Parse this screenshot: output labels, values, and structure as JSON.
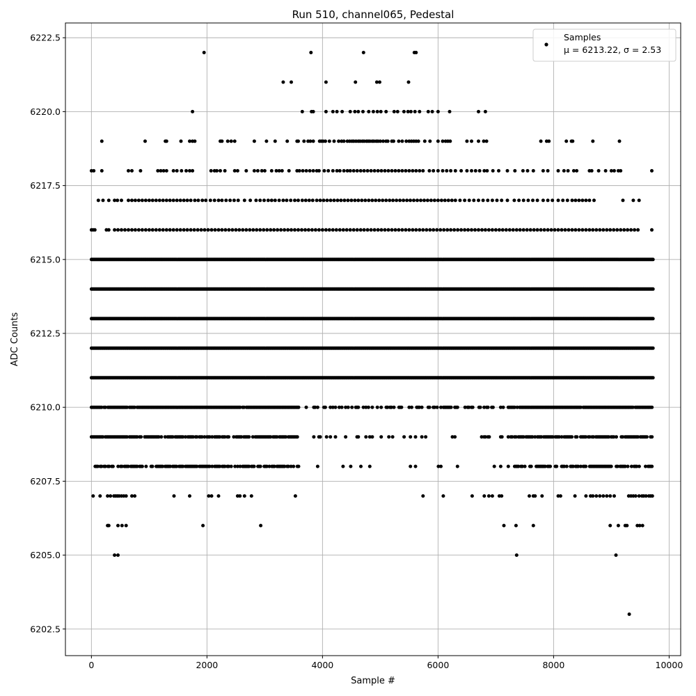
{
  "chart_data": {
    "type": "scatter",
    "title": "Run 510, channel065, Pedestal",
    "xlabel": "Sample #",
    "ylabel": "ADC Counts",
    "xlim": [
      -450,
      10200
    ],
    "ylim": [
      6201.6,
      6223.0
    ],
    "x_ticks": [
      0,
      2000,
      4000,
      6000,
      8000,
      10000
    ],
    "x_tick_labels": [
      "0",
      "2000",
      "4000",
      "6000",
      "8000",
      "10000"
    ],
    "y_ticks": [
      6202.5,
      6205.0,
      6207.5,
      6210.0,
      6212.5,
      6215.0,
      6217.5,
      6220.0,
      6222.5
    ],
    "y_tick_labels": [
      "6202.5",
      "6205.0",
      "6207.5",
      "6210.0",
      "6212.5",
      "6215.0",
      "6217.5",
      "6220.0",
      "6222.5"
    ],
    "grid": true,
    "legend_position": "top-right",
    "marker_color": "#000000",
    "series": [
      {
        "name": "Samples",
        "legend_stats": "μ = 6213.22, σ = 2.53",
        "x_range": [
          0,
          9720
        ],
        "level_points": [
          {
            "y": 6222,
            "x": [
              1950,
              3800,
              4710,
              5590,
              5620
            ]
          },
          {
            "y": 6221,
            "x": [
              3320,
              3460,
              4060,
              4570,
              4940,
              4990,
              5490
            ]
          },
          {
            "y": 6220,
            "x": [
              1750,
              3650,
              3810,
              3840,
              4060,
              4180,
              4250,
              4340,
              4480,
              4560,
              4620,
              4700,
              4800,
              4880,
              4950,
              5010,
              5100,
              5240,
              5300,
              5410,
              5480,
              5530,
              5600,
              5680,
              5830,
              5900,
              6000,
              6200,
              6700,
              6820
            ]
          },
          {
            "y": 6219,
            "x": [
              180,
              930,
              1280,
              1300,
              1550,
              1700,
              1750,
              1790,
              2230,
              2260,
              2360,
              2420,
              2480,
              2820,
              3030,
              3180,
              3390,
              3560,
              3580,
              3680,
              3750,
              3790,
              3840,
              3950,
              3980,
              4010,
              4050,
              4120,
              4200,
              4280,
              4330,
              4370,
              4430,
              4470,
              4510,
              4540,
              4580,
              4620,
              4650,
              4690,
              4720,
              4760,
              4790,
              4820,
              4860,
              4890,
              4930,
              4960,
              5000,
              5050,
              5100,
              5130,
              5200,
              5230,
              5320,
              5380,
              5450,
              5500,
              5540,
              5580,
              5620,
              5660,
              5770,
              5860,
              6000,
              6080,
              6130,
              6170,
              6210,
              6500,
              6580,
              6700,
              6790,
              6840,
              7780,
              7880,
              7920,
              8220,
              8310,
              8330,
              8680,
              9140
            ]
          },
          {
            "y": 6218,
            "x": [
              0,
              40,
              180,
              640,
              700,
              850,
              1150,
              1200,
              1250,
              1300,
              1420,
              1480,
              1560,
              1640,
              1700,
              1750,
              2070,
              2130,
              2170,
              2230,
              2310,
              2480,
              2530,
              2680,
              2820,
              2880,
              2950,
              3000,
              3120,
              3200,
              3250,
              3300,
              3420,
              3560,
              3600,
              3660,
              3720,
              3780,
              3840,
              3900,
              3940,
              4030,
              4100,
              4180,
              4250,
              4300,
              4370,
              4430,
              4480,
              4540,
              4600,
              4660,
              4720,
              4780,
              4840,
              4900,
              4960,
              5020,
              5080,
              5140,
              5200,
              5260,
              5320,
              5380,
              5440,
              5500,
              5560,
              5620,
              5680,
              5740,
              5850,
              5920,
              6000,
              6080,
              6150,
              6220,
              6300,
              6400,
              6500,
              6580,
              6650,
              6720,
              6800,
              6850,
              6950,
              7050,
              7200,
              7330,
              7470,
              7550,
              7650,
              7820,
              7900,
              8080,
              8180,
              8250,
              8350,
              8400,
              8620,
              8660,
              8780,
              8900,
              9000,
              9050,
              9120,
              9160,
              9700
            ]
          },
          {
            "y": 6217,
            "x": [
              120,
              200,
              300,
              400,
              450,
              520,
              640,
              700,
              760,
              820,
              880,
              940,
              1000,
              1060,
              1120,
              1180,
              1240,
              1300,
              1360,
              1420,
              1480,
              1540,
              1600,
              1660,
              1720,
              1790,
              1850,
              1920,
              1980,
              2060,
              2130,
              2200,
              2260,
              2330,
              2400,
              2470,
              2540,
              2650,
              2750,
              2850,
              2920,
              2990,
              3060,
              3120,
              3180,
              3250,
              3320,
              3380,
              3450,
              3520,
              3580,
              3650,
              3710,
              3770,
              3830,
              3900,
              3960,
              4020,
              4080,
              4140,
              4200,
              4260,
              4320,
              4380,
              4440,
              4500,
              4560,
              4620,
              4680,
              4740,
              4800,
              4860,
              4920,
              4980,
              5040,
              5100,
              5160,
              5220,
              5280,
              5340,
              5400,
              5460,
              5520,
              5580,
              5640,
              5700,
              5760,
              5820,
              5880,
              5940,
              6000,
              6060,
              6120,
              6180,
              6240,
              6300,
              6380,
              6460,
              6540,
              6620,
              6700,
              6780,
              6860,
              6940,
              7020,
              7100,
              7200,
              7320,
              7400,
              7480,
              7560,
              7640,
              7720,
              7820,
              7900,
              7980,
              8080,
              8160,
              8240,
              8320,
              8380,
              8440,
              8500,
              8560,
              8620,
              8700,
              9200,
              9380,
              9480
            ]
          },
          {
            "y": 6216,
            "x": [
              0,
              30,
              60,
              260,
              300,
              400,
              460,
              520,
              580,
              640,
              700,
              760,
              820,
              880,
              940,
              1000,
              1060,
              1120,
              1180,
              1240,
              1300,
              1360,
              1420,
              1480,
              1540,
              1600,
              1660,
              1720,
              1780,
              1840,
              1900,
              1960,
              2020,
              2080,
              2140,
              2200,
              2260,
              2320,
              2380,
              2440,
              2500,
              2560,
              2620,
              2680,
              2740,
              2800,
              2860,
              2920,
              2980,
              3040,
              3100,
              3160,
              3220,
              3280,
              3340,
              3400,
              3460,
              3520,
              3580,
              3640,
              3700,
              3760,
              3820,
              3880,
              3940,
              4000,
              4060,
              4120,
              4180,
              4240,
              4300,
              4360,
              4420,
              4480,
              4540,
              4600,
              4660,
              4720,
              4780,
              4840,
              4900,
              4960,
              5020,
              5080,
              5140,
              5200,
              5260,
              5320,
              5380,
              5440,
              5500,
              5560,
              5620,
              5680,
              5740,
              5800,
              5860,
              5920,
              5980,
              6040,
              6100,
              6160,
              6220,
              6280,
              6340,
              6400,
              6460,
              6520,
              6580,
              6640,
              6700,
              6760,
              6820,
              6880,
              6940,
              7000,
              7060,
              7120,
              7180,
              7240,
              7300,
              7360,
              7420,
              7480,
              7540,
              7600,
              7660,
              7720,
              7780,
              7840,
              7900,
              7960,
              8020,
              8080,
              8140,
              8200,
              8260,
              8320,
              8380,
              8440,
              8500,
              8560,
              8620,
              8680,
              8740,
              8800,
              8860,
              8920,
              8980,
              9040,
              9100,
              9160,
              9220,
              9280,
              9340,
              9400,
              9460,
              9700
            ]
          }
        ],
        "dense_levels": [
          6215,
          6214,
          6213,
          6212,
          6211
        ],
        "medium_levels": [
          6210,
          6209,
          6208
        ],
        "sparse_points": [
          {
            "y": 6207,
            "x": [
              30,
              150,
              280,
              330,
              390,
              420,
              450,
              480,
              520,
              560,
              600,
              700,
              750,
              1430,
              1700,
              2030,
              2080,
              2200,
              2530,
              2570,
              2650,
              2770,
              3530,
              5740,
              6090,
              6590,
              6800,
              6880,
              6940,
              7060,
              7100,
              7580,
              7650,
              7680,
              7800,
              8080,
              8120,
              8370,
              8560,
              8640,
              8680,
              8740,
              8800,
              8860,
              8920,
              8980,
              9050,
              9300,
              9340,
              9380,
              9420,
              9480,
              9530,
              9560,
              9600,
              9650,
              9680,
              9710
            ]
          },
          {
            "y": 6206,
            "x": [
              280,
              300,
              460,
              530,
              600,
              1930,
              2930,
              7140,
              7350,
              7650,
              8980,
              9120,
              9240,
              9270,
              9450,
              9490,
              9540
            ]
          },
          {
            "y": 6205,
            "x": [
              400,
              460,
              7360,
              9080
            ]
          },
          {
            "y": 6203,
            "x": [
              9310
            ]
          }
        ]
      }
    ]
  }
}
